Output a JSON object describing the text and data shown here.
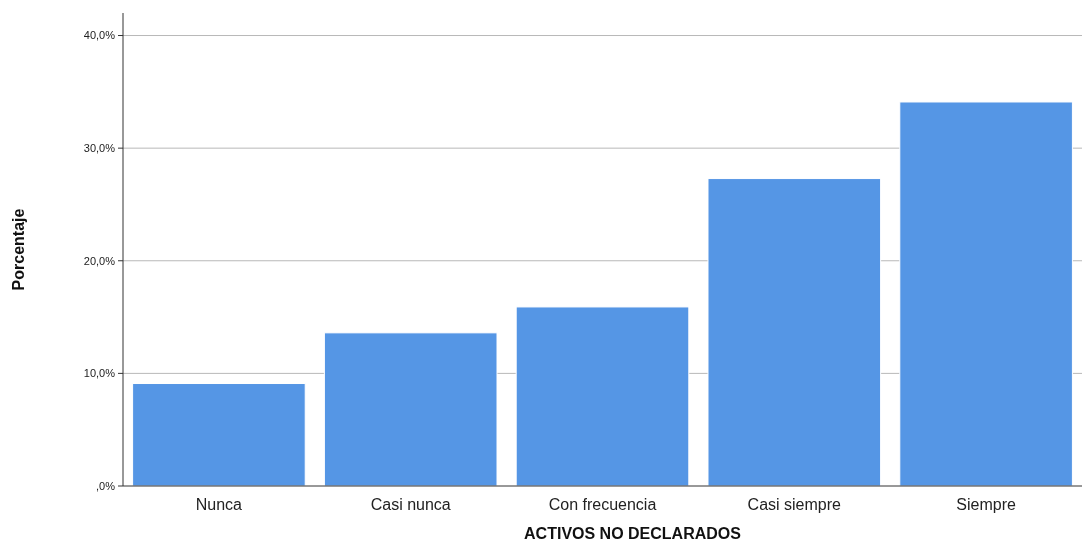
{
  "chart_data": {
    "type": "bar",
    "xlabel": "ACTIVOS NO DECLARADOS",
    "ylabel": "Porcentaje",
    "categories": [
      "Nunca",
      "Casi nunca",
      "Con frecuencia",
      "Casi siempre",
      "Siempre"
    ],
    "values": [
      9.1,
      13.6,
      15.9,
      27.3,
      34.1
    ],
    "color": "#5596e5",
    "ylim": [
      0,
      42
    ],
    "yticks": [
      {
        "value": 0,
        "label": ",0%"
      },
      {
        "value": 10,
        "label": "10,0%"
      },
      {
        "value": 20,
        "label": "20,0%"
      },
      {
        "value": 30,
        "label": "30,0%"
      },
      {
        "value": 40,
        "label": "40,0%"
      }
    ],
    "grid": "y"
  }
}
